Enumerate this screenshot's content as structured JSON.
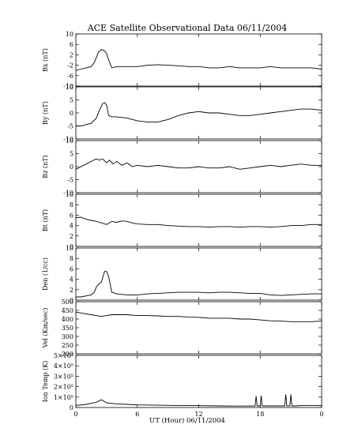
{
  "chart_data": {
    "type": "line",
    "title": "ACE Satellite Observational Data   06/11/2004",
    "xlabel": "UT (Hour)   06/11/2004",
    "x_ticks": [
      "0",
      "6",
      "12",
      "18",
      "0"
    ],
    "xlim": [
      0,
      24
    ],
    "line_color": "#000000",
    "panels": [
      {
        "id": "bx",
        "ylabel": "Bx (nT)",
        "ylim": [
          -10,
          10
        ],
        "y_ticks": [
          {
            "v": 10,
            "label": "10"
          },
          {
            "v": 6,
            "label": "6"
          },
          {
            "v": 2,
            "label": "2"
          },
          {
            "v": -2,
            "label": "-2"
          },
          {
            "v": -6,
            "label": "-6"
          },
          {
            "v": -10,
            "label": "-10"
          }
        ],
        "series": {
          "x": [
            0,
            0.5,
            1.0,
            1.5,
            1.8,
            2.0,
            2.2,
            2.5,
            2.8,
            3.0,
            3.2,
            3.5,
            4,
            5,
            6,
            7,
            8,
            9,
            10,
            11,
            12,
            13,
            14,
            15,
            16,
            17,
            18,
            19,
            20,
            21,
            22,
            23,
            24
          ],
          "y": [
            -4,
            -3.5,
            -3,
            -2.5,
            -1,
            1,
            3,
            4,
            3.5,
            2.5,
            0,
            -3,
            -2.5,
            -2.5,
            -2.5,
            -2,
            -1.8,
            -2,
            -2.2,
            -2.5,
            -2.5,
            -3,
            -3,
            -2.5,
            -3,
            -3,
            -3,
            -2.5,
            -3,
            -3,
            -3,
            -3,
            -3.5
          ]
        }
      },
      {
        "id": "by",
        "ylabel": "By (nT)",
        "ylim": [
          -10,
          10
        ],
        "y_ticks": [
          {
            "v": 10,
            "label": "10"
          },
          {
            "v": 5,
            "label": "5"
          },
          {
            "v": 0,
            "label": "0"
          },
          {
            "v": -5,
            "label": "-5"
          },
          {
            "v": -10,
            "label": "-10"
          }
        ],
        "series": {
          "x": [
            0,
            0.5,
            1.0,
            1.5,
            2.0,
            2.3,
            2.6,
            2.8,
            3.0,
            3.2,
            3.5,
            4,
            5,
            6,
            7,
            8,
            9,
            10,
            11,
            12,
            13,
            14,
            15,
            16,
            17,
            18,
            19,
            20,
            21,
            22,
            23,
            24
          ],
          "y": [
            -5,
            -5,
            -4.5,
            -4,
            -2,
            1,
            3.5,
            4,
            3,
            -1,
            -1.5,
            -1.5,
            -2,
            -3,
            -3.5,
            -3.5,
            -2.5,
            -1,
            0,
            0.5,
            0,
            0,
            -0.5,
            -1,
            -1,
            -0.5,
            0,
            0.5,
            1,
            1.5,
            1.5,
            1
          ]
        }
      },
      {
        "id": "bz",
        "ylabel": "Bz (nT)",
        "ylim": [
          -10,
          10
        ],
        "y_ticks": [
          {
            "v": 10,
            "label": "10"
          },
          {
            "v": 5,
            "label": "5"
          },
          {
            "v": 0,
            "label": "0"
          },
          {
            "v": -5,
            "label": "-5"
          },
          {
            "v": -10,
            "label": "-10"
          }
        ],
        "series": {
          "x": [
            0,
            0.5,
            1.0,
            1.5,
            2.0,
            2.3,
            2.6,
            3.0,
            3.3,
            3.6,
            4.0,
            4.5,
            5,
            5.5,
            6,
            7,
            8,
            9,
            10,
            11,
            12,
            13,
            14,
            15,
            16,
            17,
            18,
            19,
            20,
            21,
            22,
            23,
            24
          ],
          "y": [
            -1,
            0,
            1,
            2,
            3,
            2.5,
            3,
            1.5,
            2.5,
            1,
            2,
            0.5,
            1.5,
            0,
            0.5,
            0,
            0.5,
            0,
            -0.5,
            -0.5,
            0,
            -0.5,
            -0.5,
            0,
            -1,
            -0.5,
            0,
            0.5,
            0,
            0.5,
            1,
            0.5,
            0.5
          ]
        }
      },
      {
        "id": "bt",
        "ylabel": "Bt (nT)",
        "ylim": [
          0,
          10
        ],
        "y_ticks": [
          {
            "v": 10,
            "label": "10"
          },
          {
            "v": 8,
            "label": "8"
          },
          {
            "v": 6,
            "label": "6"
          },
          {
            "v": 4,
            "label": "4"
          },
          {
            "v": 2,
            "label": "2"
          },
          {
            "v": 0,
            "label": "0"
          }
        ],
        "series": {
          "x": [
            0,
            0.5,
            1,
            1.5,
            2,
            2.5,
            3,
            3.5,
            4,
            4.5,
            5,
            5.5,
            6,
            7,
            8,
            9,
            10,
            11,
            12,
            13,
            14,
            15,
            16,
            17,
            18,
            19,
            20,
            21,
            22,
            23,
            24
          ],
          "y": [
            5.5,
            5.6,
            5.2,
            5,
            4.8,
            4.5,
            4.2,
            4.8,
            4.6,
            4.9,
            4.8,
            4.5,
            4.3,
            4.2,
            4.2,
            4,
            3.9,
            3.8,
            3.8,
            3.7,
            3.8,
            3.8,
            3.7,
            3.8,
            3.8,
            3.7,
            3.8,
            4,
            4,
            4.2,
            4.2
          ]
        }
      },
      {
        "id": "den",
        "ylabel": "Den (1/cc)",
        "ylim": [
          0,
          10
        ],
        "y_ticks": [
          {
            "v": 10,
            "label": "10"
          },
          {
            "v": 8,
            "label": "8"
          },
          {
            "v": 6,
            "label": "6"
          },
          {
            "v": 4,
            "label": "4"
          },
          {
            "v": 2,
            "label": "2"
          },
          {
            "v": 0,
            "label": "0"
          }
        ],
        "series": {
          "x": [
            0,
            0.5,
            1,
            1.5,
            1.8,
            2.0,
            2.2,
            2.5,
            2.8,
            3.0,
            3.2,
            3.5,
            4,
            5,
            6,
            7,
            8,
            9,
            10,
            11,
            12,
            13,
            14,
            15,
            16,
            17,
            18,
            19,
            20,
            21,
            22,
            23,
            24
          ],
          "y": [
            0.6,
            0.6,
            0.8,
            1.0,
            1.5,
            2.5,
            3.0,
            3.5,
            5.5,
            5.5,
            4.5,
            1.5,
            1.2,
            1.0,
            1.0,
            1.2,
            1.3,
            1.4,
            1.5,
            1.5,
            1.5,
            1.4,
            1.5,
            1.5,
            1.4,
            1.3,
            1.3,
            1.0,
            0.9,
            1.0,
            1.1,
            1.2,
            1.2
          ]
        }
      },
      {
        "id": "vel",
        "ylabel": "Vel (Km/sec)",
        "ylim": [
          200,
          500
        ],
        "y_ticks": [
          {
            "v": 500,
            "label": "500"
          },
          {
            "v": 450,
            "label": "450"
          },
          {
            "v": 400,
            "label": "400"
          },
          {
            "v": 350,
            "label": "350"
          },
          {
            "v": 300,
            "label": "300"
          },
          {
            "v": 250,
            "label": "250"
          },
          {
            "v": 200,
            "label": "200"
          }
        ],
        "series": {
          "x": [
            0,
            0.5,
            1,
            1.5,
            2,
            2.5,
            3,
            3.5,
            4,
            5,
            6,
            7,
            8,
            9,
            10,
            11,
            12,
            13,
            14,
            15,
            16,
            17,
            18,
            19,
            20,
            21,
            22,
            23,
            24
          ],
          "y": [
            440,
            435,
            430,
            425,
            420,
            415,
            420,
            425,
            425,
            425,
            420,
            420,
            418,
            415,
            415,
            412,
            410,
            405,
            405,
            405,
            400,
            400,
            395,
            390,
            388,
            385,
            385,
            385,
            388
          ]
        }
      },
      {
        "id": "temp",
        "ylabel": "Ion Temp (K)",
        "ylim": [
          0,
          500000
        ],
        "y_ticks": [
          {
            "v": 500000,
            "label": "5×10⁵"
          },
          {
            "v": 400000,
            "label": "4×10⁵"
          },
          {
            "v": 300000,
            "label": "3×10⁵"
          },
          {
            "v": 200000,
            "label": "2×10⁵"
          },
          {
            "v": 100000,
            "label": "1×10⁵"
          },
          {
            "v": 0,
            "label": "0"
          }
        ],
        "series": {
          "x": [
            0,
            1,
            1.5,
            2,
            2.5,
            3,
            4,
            5,
            6,
            8,
            10,
            12,
            14,
            16,
            17.5,
            17.6,
            17.7,
            18,
            18.1,
            18.2,
            18.5,
            20,
            20.4,
            20.5,
            20.6,
            20.9,
            21.0,
            21.1,
            21.5,
            22,
            24
          ],
          "y": [
            20000,
            30000,
            40000,
            50000,
            75000,
            45000,
            35000,
            30000,
            25000,
            22000,
            20000,
            18000,
            15000,
            14000,
            15000,
            110000,
            15000,
            15000,
            115000,
            16000,
            15000,
            15000,
            15000,
            125000,
            15000,
            15000,
            125000,
            15000,
            15000,
            20000,
            20000
          ]
        }
      }
    ]
  }
}
